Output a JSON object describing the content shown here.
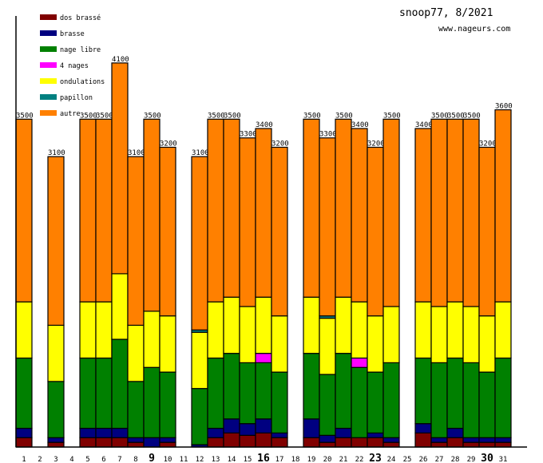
{
  "chart_data": {
    "type": "bar",
    "stacked": true,
    "title": "snoop77, 8/2021",
    "subtitle": "www.nageurs.com",
    "xlabel": "",
    "ylabel": "",
    "ylim": [
      0,
      4700
    ],
    "grid": false,
    "legend_position": "top-left",
    "categories": [
      "1",
      "2",
      "3",
      "4",
      "5",
      "6",
      "7",
      "8",
      "9",
      "10",
      "11",
      "12",
      "13",
      "14",
      "15",
      "16",
      "17",
      "18",
      "19",
      "20",
      "21",
      "22",
      "23",
      "24",
      "25",
      "26",
      "27",
      "28",
      "29",
      "30",
      "31"
    ],
    "bold_categories": [
      "9",
      "16",
      "23",
      "30"
    ],
    "totals": [
      3500,
      0,
      3100,
      0,
      3500,
      3500,
      4100,
      3100,
      3500,
      3200,
      0,
      3100,
      3500,
      3500,
      3300,
      3400,
      3200,
      0,
      3500,
      3300,
      3500,
      3400,
      3200,
      3500,
      0,
      3400,
      3500,
      3500,
      3500,
      3200,
      3600
    ],
    "series": [
      {
        "name": "dos brassé",
        "color": "#800000",
        "values": [
          100,
          0,
          50,
          0,
          100,
          100,
          100,
          50,
          0,
          50,
          0,
          0,
          100,
          150,
          125,
          150,
          100,
          0,
          100,
          50,
          100,
          100,
          100,
          50,
          0,
          150,
          50,
          100,
          50,
          50,
          50
        ]
      },
      {
        "name": "brasse",
        "color": "#000080",
        "values": [
          100,
          0,
          50,
          0,
          100,
          100,
          100,
          50,
          100,
          50,
          0,
          25,
          100,
          150,
          125,
          150,
          50,
          0,
          200,
          75,
          100,
          0,
          50,
          50,
          0,
          100,
          50,
          100,
          50,
          50,
          50
        ]
      },
      {
        "name": "nage libre",
        "color": "#008000",
        "values": [
          750,
          0,
          600,
          0,
          750,
          750,
          950,
          600,
          750,
          700,
          0,
          600,
          750,
          700,
          650,
          600,
          650,
          0,
          700,
          650,
          800,
          750,
          650,
          800,
          0,
          700,
          800,
          750,
          800,
          700,
          850
        ]
      },
      {
        "name": "4 nages",
        "color": "#ff00ff",
        "values": [
          0,
          0,
          0,
          0,
          0,
          0,
          0,
          0,
          0,
          0,
          0,
          0,
          0,
          0,
          0,
          100,
          0,
          0,
          0,
          0,
          0,
          100,
          0,
          0,
          0,
          0,
          0,
          0,
          0,
          0,
          0
        ]
      },
      {
        "name": "ondulations",
        "color": "#ffff00",
        "values": [
          600,
          0,
          600,
          0,
          600,
          600,
          700,
          600,
          600,
          600,
          0,
          600,
          600,
          600,
          600,
          600,
          600,
          0,
          600,
          600,
          600,
          600,
          600,
          600,
          0,
          600,
          600,
          600,
          600,
          600,
          600
        ]
      },
      {
        "name": "papillon",
        "color": "#008080",
        "values": [
          0,
          0,
          0,
          0,
          0,
          0,
          0,
          0,
          0,
          0,
          0,
          25,
          0,
          0,
          0,
          0,
          0,
          0,
          0,
          25,
          0,
          0,
          0,
          0,
          0,
          0,
          0,
          0,
          0,
          0,
          0
        ]
      },
      {
        "name": "autre",
        "color": "#ff8000",
        "values": [
          1950,
          0,
          1800,
          0,
          1950,
          1950,
          2250,
          1800,
          2050,
          1800,
          0,
          1850,
          1950,
          1900,
          1800,
          1800,
          1800,
          0,
          1900,
          1900,
          1900,
          1850,
          1800,
          2000,
          0,
          1850,
          2000,
          1950,
          2000,
          1800,
          2050
        ]
      }
    ]
  }
}
